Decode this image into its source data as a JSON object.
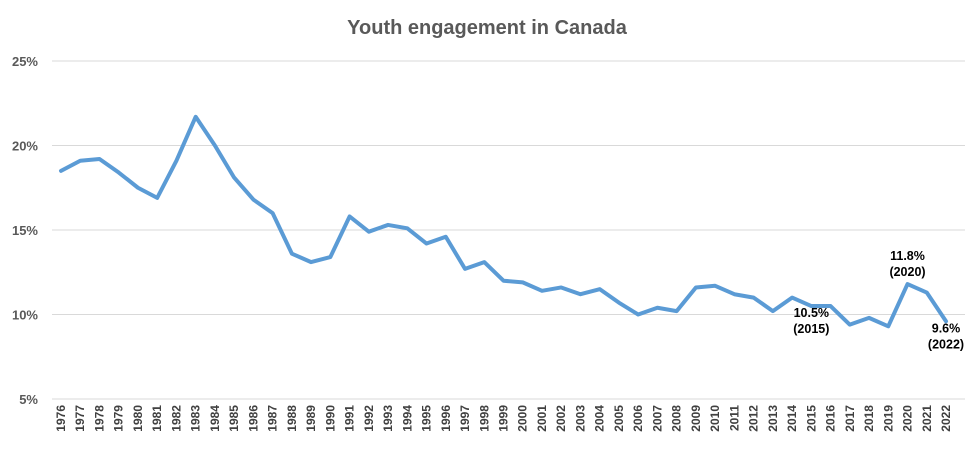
{
  "chart_data": {
    "type": "line",
    "title": "Youth engagement in Canada",
    "xlabel": "",
    "ylabel": "",
    "ylim": [
      5,
      25
    ],
    "yticks": [
      5,
      10,
      15,
      20,
      25
    ],
    "ytick_labels": [
      "5%",
      "10%",
      "15%",
      "20%",
      "25%"
    ],
    "grid": true,
    "color": "#5b9bd5",
    "categories": [
      "1976",
      "1977",
      "1978",
      "1979",
      "1980",
      "1981",
      "1982",
      "1983",
      "1984",
      "1985",
      "1986",
      "1987",
      "1988",
      "1989",
      "1990",
      "1991",
      "1992",
      "1993",
      "1994",
      "1995",
      "1996",
      "1997",
      "1998",
      "1999",
      "2000",
      "2001",
      "2002",
      "2003",
      "2004",
      "2005",
      "2006",
      "2007",
      "2008",
      "2009",
      "2010",
      "2011",
      "2012",
      "2013",
      "2014",
      "2015",
      "2016",
      "2017",
      "2018",
      "2019",
      "2020",
      "2021",
      "2022"
    ],
    "series": [
      {
        "name": "Youth engagement",
        "values": [
          18.5,
          19.1,
          19.2,
          18.4,
          17.5,
          16.9,
          19.1,
          21.7,
          20.0,
          18.1,
          16.8,
          16.0,
          13.6,
          13.1,
          13.4,
          15.8,
          14.9,
          15.3,
          15.1,
          14.2,
          14.6,
          12.7,
          13.1,
          12.0,
          11.9,
          11.4,
          11.6,
          11.2,
          11.5,
          10.7,
          10.0,
          10.4,
          10.2,
          11.6,
          11.7,
          11.2,
          11.0,
          10.2,
          11.0,
          10.5,
          10.5,
          9.4,
          9.8,
          9.3,
          11.8,
          11.3,
          9.6
        ]
      }
    ],
    "annotations": [
      {
        "category": "2015",
        "line1": "10.5%",
        "line2": "(2015)",
        "placement": "below"
      },
      {
        "category": "2020",
        "line1": "11.8%",
        "line2": "(2020)",
        "placement": "above"
      },
      {
        "category": "2022",
        "line1": "9.6%",
        "line2": "(2022)",
        "placement": "below"
      }
    ]
  }
}
